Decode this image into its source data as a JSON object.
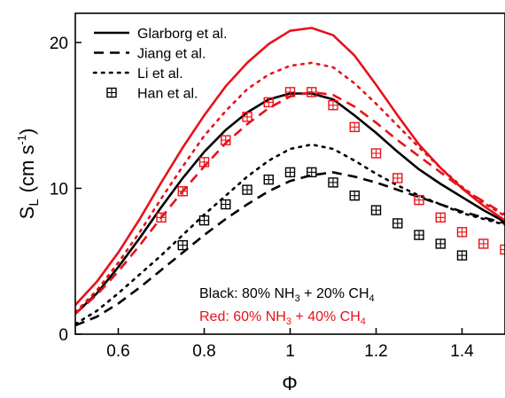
{
  "chart_data": {
    "type": "line",
    "xlabel": "Φ",
    "ylabel": {
      "main": "S",
      "sub": "L",
      "units": "(cm s",
      "exp": "-1",
      "close": ")"
    },
    "xlim": [
      0.5,
      1.5
    ],
    "ylim": [
      0,
      22
    ],
    "xticks": [
      0.6,
      0.8,
      1.0,
      1.2,
      1.4
    ],
    "xtick_labels": [
      "0.6",
      "0.8",
      "1",
      "1.2",
      "1.4"
    ],
    "yticks": [
      0,
      10,
      20
    ],
    "ytick_labels": [
      "0",
      "10",
      "20"
    ],
    "grid": false,
    "legend_position": "top-left",
    "legend": [
      {
        "label": "Glarborg et al.",
        "style": "solid"
      },
      {
        "label": "Jiang et al.",
        "style": "dashed"
      },
      {
        "label": "Li et al.",
        "style": "dotted"
      },
      {
        "label": "Han et al.",
        "style": "marker"
      }
    ],
    "annotations": [
      {
        "color": "#000000",
        "parts": [
          "Black: 80% NH",
          "3",
          " + 20% CH",
          "4"
        ]
      },
      {
        "color": "#e8121a",
        "parts": [
          "Red: 60% NH",
          "3",
          " + 40% CH",
          "4"
        ]
      }
    ],
    "series": [
      {
        "model": "Glarborg et al.",
        "mixture": "Black",
        "color": "#000000",
        "style": "solid",
        "x": [
          0.5,
          0.55,
          0.6,
          0.65,
          0.7,
          0.75,
          0.8,
          0.85,
          0.9,
          0.95,
          1.0,
          1.05,
          1.1,
          1.15,
          1.2,
          1.25,
          1.3,
          1.35,
          1.4,
          1.45,
          1.5
        ],
        "y": [
          1.4,
          2.8,
          4.6,
          6.6,
          8.7,
          10.7,
          12.5,
          14.0,
          15.2,
          16.1,
          16.5,
          16.5,
          16.1,
          15.0,
          13.8,
          12.5,
          11.3,
          10.3,
          9.4,
          8.5,
          7.7
        ]
      },
      {
        "model": "Jiang et al.",
        "mixture": "Black",
        "color": "#000000",
        "style": "dashed",
        "x": [
          0.5,
          0.55,
          0.6,
          0.65,
          0.7,
          0.75,
          0.8,
          0.85,
          0.9,
          0.95,
          1.0,
          1.05,
          1.1,
          1.15,
          1.2,
          1.25,
          1.3,
          1.35,
          1.4,
          1.45,
          1.5
        ],
        "y": [
          0.6,
          1.2,
          2.1,
          3.2,
          4.4,
          5.6,
          6.8,
          7.9,
          8.9,
          9.8,
          10.5,
          10.9,
          11.1,
          10.8,
          10.4,
          9.9,
          9.4,
          8.9,
          8.4,
          8.0,
          7.6
        ]
      },
      {
        "model": "Li et al.",
        "mixture": "Black",
        "color": "#000000",
        "style": "dotted",
        "x": [
          0.5,
          0.55,
          0.6,
          0.65,
          0.7,
          0.75,
          0.8,
          0.85,
          0.9,
          0.95,
          1.0,
          1.05,
          1.1,
          1.15,
          1.2,
          1.25,
          1.3,
          1.35,
          1.4,
          1.45,
          1.5
        ],
        "y": [
          0.7,
          1.6,
          2.8,
          4.1,
          5.4,
          6.8,
          8.2,
          9.5,
          10.8,
          11.9,
          12.7,
          13.0,
          12.7,
          11.9,
          11.0,
          10.2,
          9.5,
          8.9,
          8.3,
          7.9,
          7.5
        ]
      },
      {
        "model": "Han et al.",
        "mixture": "Black",
        "color": "#000000",
        "style": "marker",
        "x": [
          0.75,
          0.8,
          0.85,
          0.9,
          0.95,
          1.0,
          1.05,
          1.1,
          1.15,
          1.2,
          1.25,
          1.3,
          1.35,
          1.4
        ],
        "y": [
          6.1,
          7.8,
          8.9,
          9.9,
          10.6,
          11.1,
          11.1,
          10.4,
          9.5,
          8.5,
          7.6,
          6.8,
          6.2,
          5.4
        ]
      },
      {
        "model": "Glarborg et al.",
        "mixture": "Red",
        "color": "#e8121a",
        "style": "solid",
        "x": [
          0.5,
          0.55,
          0.6,
          0.65,
          0.7,
          0.75,
          0.8,
          0.85,
          0.9,
          0.95,
          1.0,
          1.05,
          1.1,
          1.15,
          1.2,
          1.25,
          1.3,
          1.35,
          1.4,
          1.45,
          1.5
        ],
        "y": [
          2.0,
          3.6,
          5.6,
          7.9,
          10.4,
          12.8,
          15.0,
          17.0,
          18.6,
          19.9,
          20.8,
          21.0,
          20.5,
          19.1,
          17.1,
          15.0,
          13.0,
          11.4,
          10.0,
          8.8,
          7.8
        ]
      },
      {
        "model": "Jiang et al.",
        "mixture": "Red",
        "color": "#e8121a",
        "style": "dashed",
        "x": [
          0.5,
          0.55,
          0.6,
          0.65,
          0.7,
          0.75,
          0.8,
          0.85,
          0.9,
          0.95,
          1.0,
          1.05,
          1.1,
          1.15,
          1.2,
          1.25,
          1.3,
          1.35,
          1.4,
          1.45,
          1.5
        ],
        "y": [
          1.4,
          2.7,
          4.3,
          6.1,
          8.0,
          9.8,
          11.5,
          13.1,
          14.4,
          15.5,
          16.3,
          16.6,
          16.4,
          15.6,
          14.5,
          13.3,
          12.2,
          11.1,
          10.0,
          9.1,
          8.2
        ]
      },
      {
        "model": "Li et al.",
        "mixture": "Red",
        "color": "#e8121a",
        "style": "dotted",
        "x": [
          0.5,
          0.55,
          0.6,
          0.65,
          0.7,
          0.75,
          0.8,
          0.85,
          0.9,
          0.95,
          1.0,
          1.05,
          1.1,
          1.15,
          1.2,
          1.25,
          1.3,
          1.35,
          1.4,
          1.45,
          1.5
        ],
        "y": [
          1.5,
          3.0,
          4.9,
          7.0,
          9.3,
          11.5,
          13.6,
          15.3,
          16.8,
          17.8,
          18.4,
          18.6,
          18.3,
          17.2,
          15.8,
          14.3,
          12.8,
          11.4,
          10.1,
          9.0,
          8.1
        ]
      },
      {
        "model": "Han et al.",
        "mixture": "Red",
        "color": "#e8121a",
        "style": "marker",
        "x": [
          0.7,
          0.75,
          0.8,
          0.85,
          0.9,
          0.95,
          1.0,
          1.05,
          1.1,
          1.15,
          1.2,
          1.25,
          1.3,
          1.35,
          1.4,
          1.45,
          1.5
        ],
        "y": [
          8.0,
          9.8,
          11.8,
          13.3,
          14.9,
          15.9,
          16.6,
          16.6,
          15.7,
          14.2,
          12.4,
          10.7,
          9.2,
          8.0,
          7.0,
          6.2,
          5.8
        ]
      }
    ]
  }
}
